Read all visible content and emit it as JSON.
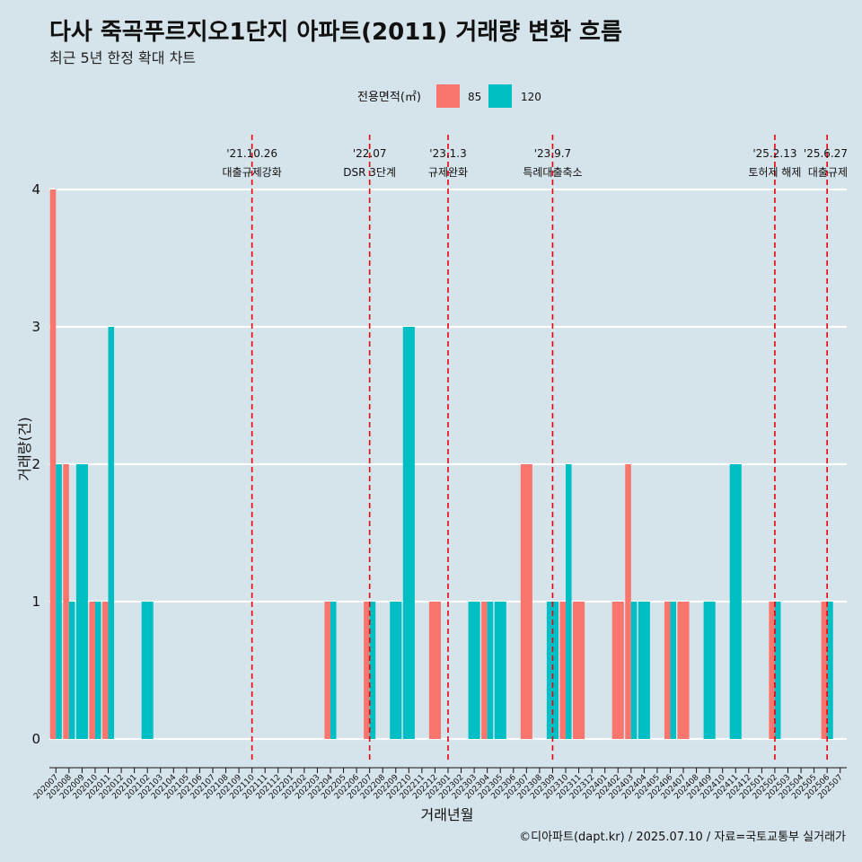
{
  "title": "다사 죽곡푸르지오1단지 아파트(2011) 거래량 변화 흐름",
  "subtitle": "최근 5년 한정 확대 차트",
  "caption": "©디아파트(dapt.kr) / 2025.07.10 / 자료=국토교통부 실거래가",
  "colors": {
    "s85": "#f8766d",
    "s120": "#00bfc4",
    "event": "#e8000b",
    "grid": "#ffffff"
  },
  "chart_data": {
    "type": "bar",
    "xlabel": "거래년월",
    "ylabel": "거래량(건)",
    "ylim": [
      0,
      4
    ],
    "yticks": [
      0,
      1,
      2,
      3,
      4
    ],
    "legend": {
      "title": "전용면적(㎡)",
      "position": "top"
    },
    "categories": [
      "202007",
      "202008",
      "202009",
      "202010",
      "202011",
      "202012",
      "202101",
      "202102",
      "202103",
      "202104",
      "202105",
      "202106",
      "202107",
      "202108",
      "202109",
      "202110",
      "202111",
      "202112",
      "202201",
      "202202",
      "202203",
      "202204",
      "202205",
      "202206",
      "202207",
      "202208",
      "202209",
      "202210",
      "202211",
      "202212",
      "202301",
      "202302",
      "202303",
      "202304",
      "202305",
      "202306",
      "202307",
      "202308",
      "202309",
      "202310",
      "202311",
      "202312",
      "202401",
      "202402",
      "202403",
      "202404",
      "202405",
      "202406",
      "202407",
      "202408",
      "202409",
      "202410",
      "202411",
      "202412",
      "202501",
      "202502",
      "202503",
      "202504",
      "202505",
      "202506",
      "202507"
    ],
    "series": [
      {
        "name": "85",
        "color": "#f8766d",
        "values": {
          "202007": 4,
          "202008": 2,
          "202010": 1,
          "202011": 1,
          "202204": 1,
          "202207": 1,
          "202212": 1,
          "202304": 1,
          "202307": 2,
          "202310": 1,
          "202311": 1,
          "202402": 1,
          "202403": 2,
          "202406": 1,
          "202407": 1,
          "202502": 1,
          "202506": 1
        }
      },
      {
        "name": "120",
        "color": "#00bfc4",
        "values": {
          "202007": 2,
          "202008": 1,
          "202009": 2,
          "202010": 1,
          "202011": 3,
          "202102": 1,
          "202204": 1,
          "202207": 1,
          "202209": 1,
          "202210": 3,
          "202303": 1,
          "202304": 1,
          "202305": 1,
          "202309": 1,
          "202310": 2,
          "202403": 1,
          "202404": 1,
          "202406": 1,
          "202409": 1,
          "202411": 2,
          "202502": 1,
          "202506": 1
        }
      }
    ],
    "events": [
      {
        "date": "'21.10.26",
        "name": "대출규제강화",
        "month": "202110"
      },
      {
        "date": "'22.07",
        "name": "DSR 3단계",
        "month": "202207"
      },
      {
        "date": "'23.1.3",
        "name": "규제완화",
        "month": "202301"
      },
      {
        "date": "'23.9.7",
        "name": "특례대출축소",
        "month": "202309"
      },
      {
        "date": "'25.2.13",
        "name": "토허제 해제",
        "month": "202502"
      },
      {
        "date": "'25.6.27",
        "name": "대출규제",
        "month": "202506"
      }
    ]
  }
}
